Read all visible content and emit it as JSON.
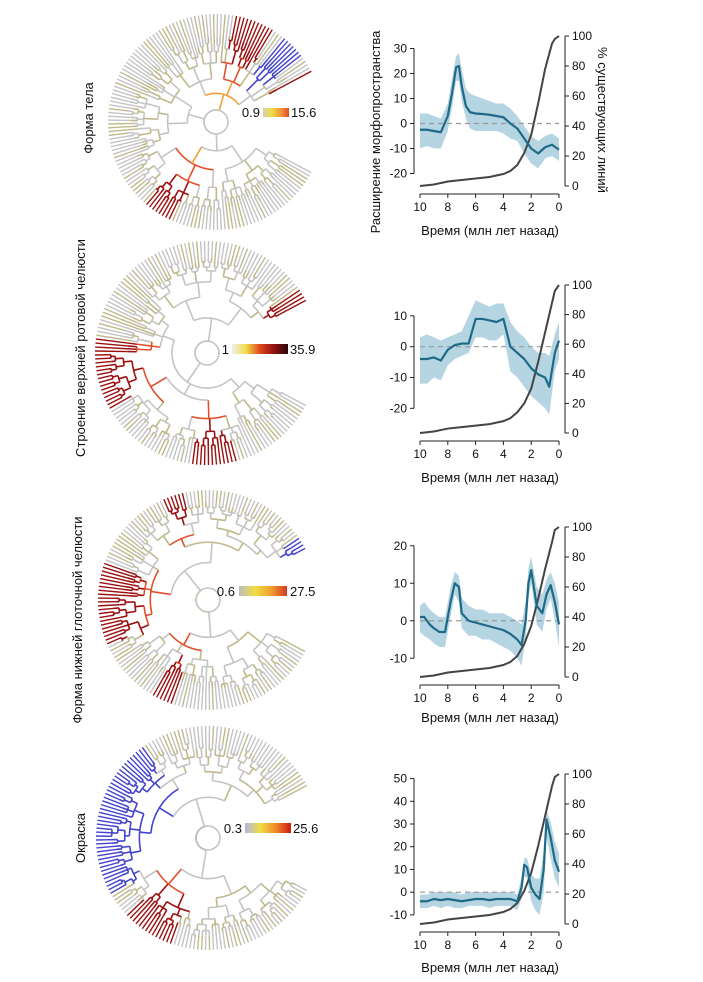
{
  "shared": {
    "ylabel_left": "Расширение морфопространства",
    "ylabel_right": "% существующих линий",
    "xlabel": "Время (млн лет назад)",
    "x_ticks": [
      10,
      8,
      6,
      4,
      2,
      0
    ],
    "y_right_ticks": [
      0,
      20,
      40,
      60,
      80,
      100
    ],
    "colors": {
      "mean_line": "#1f6a87",
      "band": "#a9cedd",
      "lineage_line": "#444444",
      "zero_line": "#999999",
      "tree_base": "#c4c4c4",
      "tree_branch_low": "#bfb98a",
      "tree_hot": [
        "#e8d44a",
        "#f2a038",
        "#e2502b",
        "#9b1111"
      ],
      "tree_blue": "#4444cc"
    }
  },
  "panels": [
    {
      "trait_label": "Форма тела",
      "colorbar": {
        "min_label": "0.9",
        "max_label": "15.6",
        "colors": [
          "#d4d0b2",
          "#f0dd46",
          "#f39a32",
          "#e34a2e"
        ]
      }
    },
    {
      "trait_label": "Строение верхней ротовой челюсти",
      "colorbar": {
        "min_label": "1",
        "max_label": "35.9",
        "colors": [
          "#eeeeee",
          "#f0dd46",
          "#e0481c",
          "#901010",
          "#2a0a0a"
        ]
      }
    },
    {
      "trait_label": "Форма нижней глоточной челюсти",
      "colorbar": {
        "min_label": "0.6",
        "max_label": "27.5",
        "colors": [
          "#bdbdbd",
          "#f0dd46",
          "#f0a030",
          "#d33a22"
        ]
      }
    },
    {
      "trait_label": "Окраска",
      "colorbar": {
        "min_label": "0.3",
        "max_label": "25.6",
        "colors": [
          "#b3b3e6",
          "#f0dd46",
          "#f08a28",
          "#cc1a12"
        ]
      }
    }
  ],
  "chart_data": [
    {
      "type": "line",
      "title": "Форма тела",
      "xlabel": "Время (млн лет назад)",
      "ylabel": "Расширение морфопространства",
      "y2label": "% существующих линий",
      "xlim": [
        10,
        0
      ],
      "ylim": [
        -25,
        35
      ],
      "y2lim": [
        0,
        100
      ],
      "y_ticks": [
        -20,
        -10,
        0,
        10,
        20,
        30
      ],
      "series": [
        {
          "name": "morphospace_mean",
          "x": [
            10,
            9.5,
            9,
            8.5,
            8,
            7.7,
            7.4,
            7.2,
            7,
            6.7,
            6.4,
            6,
            5.5,
            5,
            4.5,
            4,
            3.5,
            3,
            2.5,
            2,
            1.5,
            1,
            0.5,
            0
          ],
          "values": [
            -2.5,
            -2.5,
            -3,
            -3.5,
            3,
            12,
            22.5,
            23,
            15,
            7,
            4.5,
            4,
            3.8,
            3.5,
            3,
            2.5,
            0,
            -2,
            -6,
            -10,
            -12,
            -9.5,
            -8.5,
            -10.5
          ]
        },
        {
          "name": "band_upper",
          "values": [
            4,
            4,
            3,
            2,
            8,
            18,
            27,
            28,
            22,
            14,
            12,
            11,
            10,
            9,
            8,
            8,
            6,
            3,
            -1,
            -5,
            -7,
            -5,
            -4,
            -6
          ]
        },
        {
          "name": "band_lower",
          "values": [
            -10,
            -9,
            -10,
            -10,
            -3,
            6,
            17,
            17,
            9,
            2,
            -2,
            -3,
            -3,
            -3,
            -3,
            -4,
            -6,
            -7,
            -12,
            -16,
            -18,
            -14,
            -13,
            -15
          ]
        },
        {
          "name": "lineages_pct",
          "x": [
            10,
            9,
            8,
            7,
            6,
            5,
            4.5,
            4,
            3.5,
            3,
            2.5,
            2,
            1.5,
            1,
            0.5,
            0.3,
            0
          ],
          "values": [
            0,
            1,
            3,
            4,
            5,
            6,
            7,
            8,
            10,
            14,
            22,
            34,
            55,
            78,
            95,
            98,
            100
          ]
        }
      ]
    },
    {
      "type": "line",
      "title": "Строение верхней ротовой челюсти",
      "xlabel": "Время (млн лет назад)",
      "ylabel": "",
      "y2label": "",
      "xlim": [
        10,
        0
      ],
      "ylim": [
        -28,
        20
      ],
      "y2lim": [
        0,
        100
      ],
      "y_ticks": [
        -20,
        -10,
        0,
        10
      ],
      "series": [
        {
          "name": "morphospace_mean",
          "x": [
            10,
            9.5,
            9,
            8.5,
            8,
            7.5,
            7,
            6.5,
            6,
            5.5,
            5,
            4.5,
            4,
            3.5,
            3,
            2.5,
            2,
            1.5,
            1,
            0.7,
            0.3,
            0
          ],
          "values": [
            -4,
            -4,
            -3.5,
            -4.5,
            -1,
            0.5,
            1,
            1,
            9,
            9,
            8.5,
            8,
            9,
            0,
            -2,
            -4,
            -7,
            -9,
            -10,
            -13,
            -2,
            2
          ]
        },
        {
          "name": "band_upper",
          "values": [
            3,
            4,
            3,
            2,
            3,
            4,
            5,
            10,
            15,
            14,
            13,
            14,
            14,
            8,
            5,
            3,
            0,
            -2,
            -2,
            -3,
            4,
            8
          ]
        },
        {
          "name": "band_lower",
          "values": [
            -12,
            -12,
            -10,
            -11,
            -6,
            -4,
            -3,
            -2,
            3,
            3,
            2,
            2,
            4,
            -8,
            -10,
            -13,
            -16,
            -18,
            -20,
            -22,
            -8,
            -4
          ]
        },
        {
          "name": "lineages_pct",
          "x": [
            10,
            9,
            8,
            7,
            6,
            5,
            4.5,
            4,
            3.5,
            3,
            2.5,
            2,
            1.5,
            1,
            0.5,
            0.3,
            0
          ],
          "values": [
            0,
            1,
            3,
            4,
            5,
            6,
            7,
            8,
            10,
            14,
            20,
            30,
            48,
            68,
            88,
            96,
            100
          ]
        }
      ]
    },
    {
      "type": "line",
      "title": "Форма нижней глоточной челюсти",
      "xlabel": "Время (млн лет назад)",
      "ylabel": "",
      "y2label": "",
      "xlim": [
        10,
        0
      ],
      "ylim": [
        -15,
        25
      ],
      "y2lim": [
        0,
        100
      ],
      "y_ticks": [
        -10,
        0,
        10,
        20
      ],
      "series": [
        {
          "name": "morphospace_mean",
          "x": [
            10,
            9.7,
            9.3,
            9,
            8.6,
            8.2,
            7.8,
            7.5,
            7.2,
            7,
            6.5,
            6,
            5.5,
            5,
            4.5,
            4,
            3.5,
            3,
            2.7,
            2.4,
            2.2,
            2,
            1.6,
            1.2,
            0.9,
            0.6,
            0.3,
            0
          ],
          "values": [
            1,
            1,
            -1,
            -2,
            -3,
            -3,
            5,
            10,
            9,
            2,
            0,
            -0.5,
            -1,
            -1.5,
            -2,
            -2.5,
            -3.5,
            -5,
            -6.5,
            0,
            10,
            13.5,
            4,
            2,
            7,
            9.5,
            5,
            -1
          ]
        },
        {
          "name": "band_upper",
          "values": [
            4,
            5,
            3,
            2,
            1,
            1,
            9,
            13,
            12,
            6,
            4,
            3,
            3,
            2,
            2,
            2,
            1,
            0,
            -1,
            5,
            14,
            17,
            9,
            7,
            11,
            13,
            10,
            5
          ]
        },
        {
          "name": "band_lower",
          "values": [
            -3,
            -4,
            -5,
            -6,
            -7,
            -7,
            1,
            7,
            5,
            -2,
            -4,
            -4,
            -5,
            -5,
            -6,
            -7,
            -8,
            -10,
            -12,
            -5,
            6,
            10,
            -1,
            -3,
            3,
            6,
            0,
            -7
          ]
        },
        {
          "name": "lineages_pct",
          "x": [
            10,
            9,
            8,
            7,
            6,
            5,
            4,
            3.5,
            3,
            2.5,
            2,
            1.5,
            1,
            0.5,
            0.3,
            0
          ],
          "values": [
            0,
            1,
            3,
            4,
            5,
            6,
            8,
            10,
            14,
            22,
            34,
            52,
            72,
            90,
            98,
            100
          ]
        }
      ]
    },
    {
      "type": "line",
      "title": "Окраска",
      "xlabel": "Время (млн лет назад)",
      "ylabel": "",
      "y2label": "",
      "xlim": [
        10,
        0
      ],
      "ylim": [
        -14,
        52
      ],
      "y2lim": [
        0,
        100
      ],
      "y_ticks": [
        -10,
        0,
        10,
        20,
        30,
        40,
        50
      ],
      "series": [
        {
          "name": "morphospace_mean",
          "x": [
            10,
            9.5,
            9,
            8.5,
            8,
            7.5,
            7,
            6.5,
            6,
            5.5,
            5,
            4.5,
            4,
            3.5,
            3,
            2.7,
            2.5,
            2.3,
            2,
            1.7,
            1.4,
            1.1,
            0.9,
            0.6,
            0.3,
            0
          ],
          "values": [
            -4,
            -4,
            -3,
            -3.5,
            -3,
            -3.5,
            -4,
            -3.5,
            -3,
            -3,
            -3.5,
            -3,
            -3,
            -3,
            -4,
            2,
            12,
            11,
            2,
            -1,
            -3,
            10,
            32,
            24,
            14,
            9
          ]
        },
        {
          "name": "band_upper",
          "values": [
            -1,
            -1,
            0,
            0,
            0,
            0,
            -1,
            0,
            0,
            0,
            0,
            0,
            0,
            0,
            -1,
            6,
            15,
            15,
            8,
            6,
            6,
            18,
            36,
            31,
            22,
            17
          ]
        },
        {
          "name": "band_lower",
          "values": [
            -7,
            -7,
            -6,
            -7,
            -6,
            -7,
            -7,
            -6,
            -6,
            -6,
            -7,
            -6,
            -6,
            -6,
            -8,
            -3,
            7,
            6,
            -4,
            -8,
            -10,
            0,
            24,
            15,
            6,
            2
          ]
        },
        {
          "name": "lineages_pct",
          "x": [
            10,
            9,
            8,
            7,
            6,
            5,
            4,
            3.5,
            3,
            2.5,
            2,
            1.5,
            1,
            0.5,
            0.3,
            0
          ],
          "values": [
            0,
            1,
            3,
            4,
            5,
            6,
            8,
            10,
            14,
            22,
            34,
            52,
            72,
            92,
            98,
            100
          ]
        }
      ]
    }
  ]
}
